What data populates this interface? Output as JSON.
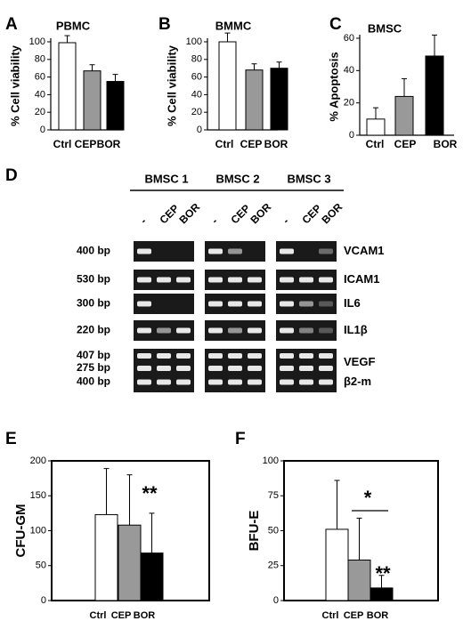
{
  "colors": {
    "ctrl": "#ffffff",
    "cep": "#999999",
    "bor": "#000000",
    "gel_bg": "#1a1a1a",
    "band": "#e8e8e8"
  },
  "chart_data": [
    {
      "panel": "A",
      "type": "bar",
      "title": "PBMC",
      "ylabel": "% Cell viability",
      "categories": [
        "Ctrl",
        "CEP",
        "BOR"
      ],
      "values": [
        99,
        67,
        55
      ],
      "errors": [
        8,
        7,
        8
      ],
      "ylim": [
        0,
        100
      ],
      "yticks": [
        0,
        20,
        40,
        60,
        80,
        100
      ]
    },
    {
      "panel": "B",
      "type": "bar",
      "title": "BMMC",
      "ylabel": "% Cell viability",
      "categories": [
        "Ctrl",
        "CEP",
        "BOR"
      ],
      "values": [
        100,
        68,
        70
      ],
      "errors": [
        10,
        7,
        7
      ],
      "ylim": [
        0,
        100
      ],
      "yticks": [
        0,
        20,
        40,
        60,
        80,
        100
      ]
    },
    {
      "panel": "C",
      "type": "bar",
      "title": "BMSC",
      "ylabel": "% Apoptosis",
      "categories": [
        "Ctrl",
        "CEP",
        "BOR"
      ],
      "values": [
        10,
        24,
        49
      ],
      "errors": [
        7,
        11,
        13
      ],
      "ylim": [
        0,
        60
      ],
      "yticks": [
        0,
        20,
        40,
        60
      ]
    },
    {
      "panel": "E",
      "type": "bar",
      "ylabel": "CFU-GM",
      "categories": [
        "Ctrl",
        "CEP",
        "BOR"
      ],
      "values": [
        123,
        108,
        68
      ],
      "errors": [
        66,
        72,
        57
      ],
      "ylim": [
        0,
        200
      ],
      "yticks": [
        0,
        50,
        100,
        150,
        200
      ],
      "annotation": "**"
    },
    {
      "panel": "F",
      "type": "bar",
      "ylabel": "BFU-E",
      "categories": [
        "Ctrl",
        "CEP",
        "BOR"
      ],
      "values": [
        51,
        29,
        9
      ],
      "errors": [
        35,
        30,
        9
      ],
      "ylim": [
        0,
        100
      ],
      "yticks": [
        0,
        25,
        50,
        75,
        100
      ],
      "annotation": "**",
      "bracket_annotation": "*"
    }
  ],
  "gel": {
    "panel": "D",
    "groups": [
      "BMSC 1",
      "BMSC 2",
      "BMSC 3"
    ],
    "lanes": [
      "-",
      "CEP",
      "BOR"
    ],
    "rows": [
      {
        "size": "400 bp",
        "gene": "VCAM1",
        "bands": [
          [
            1,
            0,
            0
          ],
          [
            1,
            0.6,
            0
          ],
          [
            1,
            0,
            0.4
          ]
        ]
      },
      {
        "size": "530 bp",
        "gene": "ICAM1",
        "bands": [
          [
            1,
            1,
            1
          ],
          [
            1,
            1,
            1
          ],
          [
            1,
            1,
            1
          ]
        ]
      },
      {
        "size": "300 bp",
        "gene": "IL6",
        "bands": [
          [
            1,
            0,
            0
          ],
          [
            1,
            1,
            1
          ],
          [
            1,
            0.6,
            0.3
          ]
        ]
      },
      {
        "size": "220 bp",
        "gene": "IL1β",
        "bands": [
          [
            1,
            0.6,
            1
          ],
          [
            1,
            0.6,
            1
          ],
          [
            1,
            0.5,
            0.3
          ]
        ]
      },
      {
        "size": "407 bp\n275 bp",
        "gene": "VEGF",
        "bands": [
          [
            1,
            1,
            1
          ],
          [
            1,
            1,
            1
          ],
          [
            1,
            1,
            1
          ]
        ],
        "double": true
      },
      {
        "size": "400 bp",
        "gene": "β2-m",
        "bands": [
          [
            1,
            1,
            1
          ],
          [
            1,
            1,
            1
          ],
          [
            1,
            1,
            1
          ]
        ]
      }
    ]
  }
}
